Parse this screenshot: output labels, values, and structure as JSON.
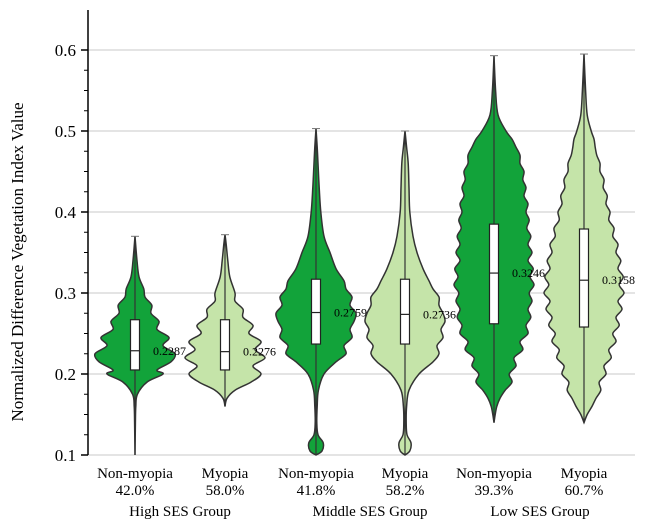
{
  "chart_data": {
    "type": "violin",
    "ylabel": "Normalized Difference Vegetation Index Value",
    "ylim": [
      0.1,
      0.6
    ],
    "yticks": [
      "0.1",
      "0.2",
      "0.3",
      "0.4",
      "0.5",
      "0.6"
    ],
    "grid": "horizontal",
    "colors": {
      "non_myopia": "#12a33a",
      "myopia": "#c5e4a9",
      "outline": "#333333"
    },
    "groups": [
      {
        "label": "High SES Group"
      },
      {
        "label": "Middle SES Group"
      },
      {
        "label": "Low SES Group"
      }
    ],
    "violins": [
      {
        "name": "Non-myopia",
        "pct": "42.0%",
        "group": 0,
        "kind": "non_myopia",
        "median": 0.2287,
        "median_label": "0.2287",
        "q1": 0.205,
        "q3": 0.267,
        "min": 0.1,
        "max": 0.37,
        "shape": [
          [
            0.1,
            0
          ],
          [
            0.12,
            0.005
          ],
          [
            0.14,
            0.01
          ],
          [
            0.16,
            0.02
          ],
          [
            0.175,
            0.06
          ],
          [
            0.19,
            0.3
          ],
          [
            0.2,
            0.7
          ],
          [
            0.205,
            0.55
          ],
          [
            0.215,
            0.9
          ],
          [
            0.225,
            1.0
          ],
          [
            0.235,
            0.7
          ],
          [
            0.245,
            0.85
          ],
          [
            0.255,
            0.55
          ],
          [
            0.265,
            0.6
          ],
          [
            0.275,
            0.4
          ],
          [
            0.285,
            0.42
          ],
          [
            0.295,
            0.25
          ],
          [
            0.305,
            0.22
          ],
          [
            0.32,
            0.1
          ],
          [
            0.34,
            0.05
          ],
          [
            0.37,
            0
          ]
        ]
      },
      {
        "name": "Myopia",
        "pct": "58.0%",
        "group": 0,
        "kind": "myopia",
        "median": 0.2276,
        "median_label": "0.2276",
        "q1": 0.205,
        "q3": 0.267,
        "min": 0.16,
        "max": 0.372,
        "shape": [
          [
            0.16,
            0
          ],
          [
            0.17,
            0.05
          ],
          [
            0.18,
            0.25
          ],
          [
            0.19,
            0.65
          ],
          [
            0.2,
            0.9
          ],
          [
            0.21,
            0.7
          ],
          [
            0.22,
            1.0
          ],
          [
            0.23,
            0.75
          ],
          [
            0.24,
            0.9
          ],
          [
            0.25,
            0.6
          ],
          [
            0.26,
            0.7
          ],
          [
            0.27,
            0.45
          ],
          [
            0.28,
            0.45
          ],
          [
            0.29,
            0.25
          ],
          [
            0.3,
            0.25
          ],
          [
            0.32,
            0.12
          ],
          [
            0.34,
            0.07
          ],
          [
            0.36,
            0.03
          ],
          [
            0.372,
            0
          ]
        ]
      },
      {
        "name": "Non-myopia",
        "pct": "41.8%",
        "group": 1,
        "kind": "non_myopia",
        "median": 0.2759,
        "median_label": "0.2759",
        "q1": 0.237,
        "q3": 0.317,
        "min": 0.1,
        "max": 0.503,
        "shape": [
          [
            0.1,
            0
          ],
          [
            0.105,
            0.15
          ],
          [
            0.115,
            0.18
          ],
          [
            0.125,
            0.05
          ],
          [
            0.14,
            0.02
          ],
          [
            0.16,
            0.03
          ],
          [
            0.18,
            0.06
          ],
          [
            0.2,
            0.2
          ],
          [
            0.215,
            0.5
          ],
          [
            0.225,
            0.75
          ],
          [
            0.235,
            0.7
          ],
          [
            0.245,
            0.9
          ],
          [
            0.255,
            0.85
          ],
          [
            0.265,
            0.95
          ],
          [
            0.275,
            1.0
          ],
          [
            0.285,
            0.85
          ],
          [
            0.295,
            0.9
          ],
          [
            0.305,
            0.75
          ],
          [
            0.315,
            0.7
          ],
          [
            0.33,
            0.5
          ],
          [
            0.35,
            0.35
          ],
          [
            0.37,
            0.2
          ],
          [
            0.4,
            0.12
          ],
          [
            0.43,
            0.08
          ],
          [
            0.46,
            0.05
          ],
          [
            0.48,
            0.03
          ],
          [
            0.503,
            0
          ]
        ]
      },
      {
        "name": "Myopia",
        "pct": "58.2%",
        "group": 1,
        "kind": "myopia",
        "median": 0.2736,
        "median_label": "0.2736",
        "q1": 0.237,
        "q3": 0.317,
        "min": 0.1,
        "max": 0.5,
        "shape": [
          [
            0.1,
            0
          ],
          [
            0.105,
            0.12
          ],
          [
            0.115,
            0.15
          ],
          [
            0.125,
            0.05
          ],
          [
            0.14,
            0.03
          ],
          [
            0.16,
            0.04
          ],
          [
            0.18,
            0.1
          ],
          [
            0.2,
            0.35
          ],
          [
            0.215,
            0.7
          ],
          [
            0.225,
            0.85
          ],
          [
            0.235,
            0.8
          ],
          [
            0.245,
            0.95
          ],
          [
            0.255,
            0.9
          ],
          [
            0.265,
            1.0
          ],
          [
            0.275,
            0.95
          ],
          [
            0.285,
            0.85
          ],
          [
            0.295,
            0.85
          ],
          [
            0.305,
            0.7
          ],
          [
            0.315,
            0.6
          ],
          [
            0.33,
            0.45
          ],
          [
            0.35,
            0.3
          ],
          [
            0.37,
            0.2
          ],
          [
            0.4,
            0.12
          ],
          [
            0.43,
            0.1
          ],
          [
            0.46,
            0.08
          ],
          [
            0.48,
            0.04
          ],
          [
            0.5,
            0
          ]
        ]
      },
      {
        "name": "Non-myopia",
        "pct": "39.3%",
        "group": 2,
        "kind": "non_myopia",
        "median": 0.3246,
        "median_label": "0.3246",
        "q1": 0.262,
        "q3": 0.385,
        "min": 0.14,
        "max": 0.593,
        "shape": [
          [
            0.14,
            0
          ],
          [
            0.15,
            0.03
          ],
          [
            0.16,
            0.07
          ],
          [
            0.17,
            0.15
          ],
          [
            0.18,
            0.28
          ],
          [
            0.19,
            0.45
          ],
          [
            0.2,
            0.38
          ],
          [
            0.21,
            0.55
          ],
          [
            0.22,
            0.5
          ],
          [
            0.23,
            0.72
          ],
          [
            0.24,
            0.65
          ],
          [
            0.25,
            0.85
          ],
          [
            0.26,
            0.8
          ],
          [
            0.27,
            0.92
          ],
          [
            0.28,
            0.85
          ],
          [
            0.29,
            0.95
          ],
          [
            0.3,
            0.88
          ],
          [
            0.31,
            1.0
          ],
          [
            0.32,
            0.9
          ],
          [
            0.33,
            0.98
          ],
          [
            0.34,
            0.85
          ],
          [
            0.35,
            0.95
          ],
          [
            0.36,
            0.85
          ],
          [
            0.37,
            0.92
          ],
          [
            0.38,
            0.82
          ],
          [
            0.39,
            0.88
          ],
          [
            0.4,
            0.8
          ],
          [
            0.41,
            0.85
          ],
          [
            0.42,
            0.75
          ],
          [
            0.43,
            0.8
          ],
          [
            0.44,
            0.72
          ],
          [
            0.45,
            0.75
          ],
          [
            0.46,
            0.65
          ],
          [
            0.47,
            0.65
          ],
          [
            0.48,
            0.55
          ],
          [
            0.49,
            0.45
          ],
          [
            0.5,
            0.3
          ],
          [
            0.52,
            0.1
          ],
          [
            0.55,
            0.04
          ],
          [
            0.593,
            0
          ]
        ]
      },
      {
        "name": "Myopia",
        "pct": "60.7%",
        "group": 2,
        "kind": "myopia",
        "median": 0.3158,
        "median_label": "0.3158",
        "q1": 0.258,
        "q3": 0.379,
        "min": 0.14,
        "max": 0.595,
        "shape": [
          [
            0.14,
            0
          ],
          [
            0.15,
            0.08
          ],
          [
            0.16,
            0.2
          ],
          [
            0.17,
            0.3
          ],
          [
            0.18,
            0.42
          ],
          [
            0.19,
            0.38
          ],
          [
            0.2,
            0.55
          ],
          [
            0.21,
            0.5
          ],
          [
            0.22,
            0.68
          ],
          [
            0.23,
            0.62
          ],
          [
            0.24,
            0.8
          ],
          [
            0.25,
            0.72
          ],
          [
            0.26,
            0.88
          ],
          [
            0.27,
            0.8
          ],
          [
            0.28,
            0.95
          ],
          [
            0.29,
            0.85
          ],
          [
            0.3,
            1.0
          ],
          [
            0.31,
            0.88
          ],
          [
            0.32,
            0.98
          ],
          [
            0.33,
            0.85
          ],
          [
            0.34,
            0.92
          ],
          [
            0.35,
            0.8
          ],
          [
            0.36,
            0.85
          ],
          [
            0.37,
            0.72
          ],
          [
            0.38,
            0.75
          ],
          [
            0.39,
            0.62
          ],
          [
            0.4,
            0.65
          ],
          [
            0.41,
            0.55
          ],
          [
            0.42,
            0.58
          ],
          [
            0.43,
            0.48
          ],
          [
            0.44,
            0.5
          ],
          [
            0.45,
            0.4
          ],
          [
            0.46,
            0.4
          ],
          [
            0.47,
            0.32
          ],
          [
            0.48,
            0.28
          ],
          [
            0.49,
            0.25
          ],
          [
            0.5,
            0.18
          ],
          [
            0.52,
            0.08
          ],
          [
            0.55,
            0.04
          ],
          [
            0.595,
            0
          ]
        ]
      }
    ]
  }
}
